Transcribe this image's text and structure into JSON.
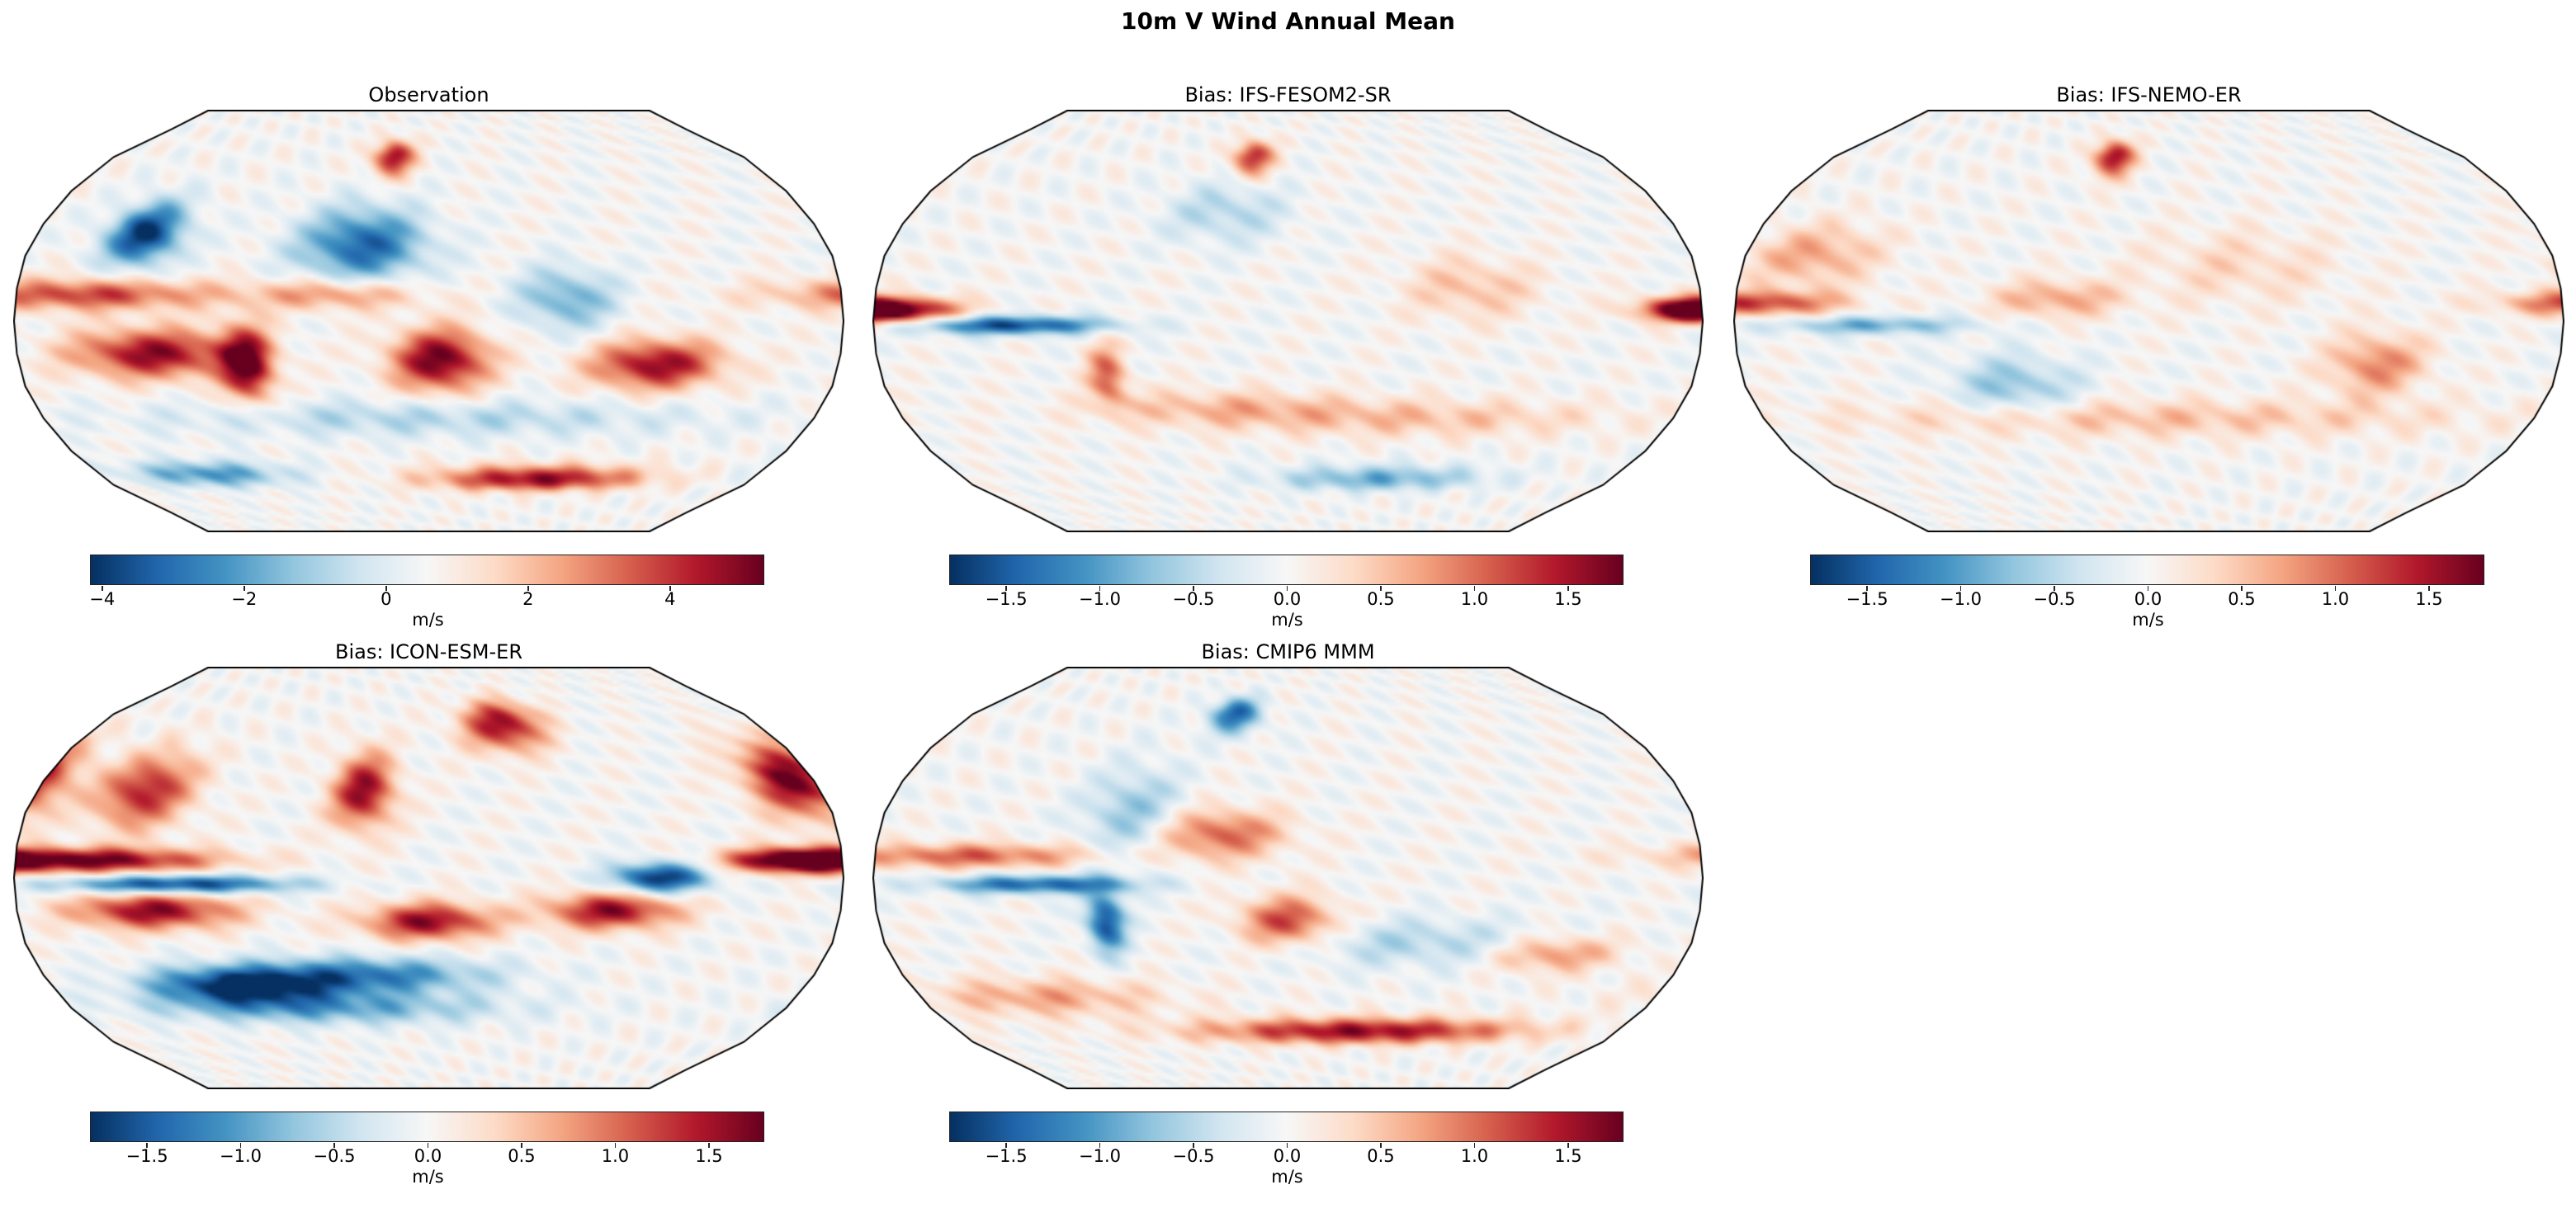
{
  "title": "10m V Wind Annual Mean",
  "colormap": "RdBu_r",
  "chart_data": {
    "type": "heatmap",
    "title": "10m V Wind Annual Mean",
    "projection": "Robinson",
    "panels": [
      {
        "title": "Observation",
        "colorbar": {
          "label": "m/s",
          "range": [
            -4.16,
            5.34
          ],
          "ticks": [
            -4,
            -2,
            0,
            2,
            4
          ],
          "tick_labels": [
            "−4",
            "−2",
            "0",
            "2",
            "4"
          ]
        }
      },
      {
        "title": "Bias: IFS-FESOM2-SR",
        "colorbar": {
          "label": "m/s",
          "range": [
            -1.8,
            1.8
          ],
          "ticks": [
            -1.5,
            -1.0,
            -0.5,
            0.0,
            0.5,
            1.0,
            1.5
          ],
          "tick_labels": [
            "−1.5",
            "−1.0",
            "−0.5",
            "0.0",
            "0.5",
            "1.0",
            "1.5"
          ]
        }
      },
      {
        "title": "Bias: IFS-NEMO-ER",
        "colorbar": {
          "label": "m/s",
          "range": [
            -1.8,
            1.8
          ],
          "ticks": [
            -1.5,
            -1.0,
            -0.5,
            0.0,
            0.5,
            1.0,
            1.5
          ],
          "tick_labels": [
            "−1.5",
            "−1.0",
            "−0.5",
            "0.0",
            "0.5",
            "1.0",
            "1.5"
          ]
        }
      },
      {
        "title": "Bias: ICON-ESM-ER",
        "colorbar": {
          "label": "m/s",
          "range": [
            -1.8,
            1.8
          ],
          "ticks": [
            -1.5,
            -1.0,
            -0.5,
            0.0,
            0.5,
            1.0,
            1.5
          ],
          "tick_labels": [
            "−1.5",
            "−1.0",
            "−0.5",
            "0.0",
            "0.5",
            "1.0",
            "1.5"
          ]
        }
      },
      {
        "title": "Bias: CMIP6 MMM",
        "colorbar": {
          "label": "m/s",
          "range": [
            -1.8,
            1.8
          ],
          "ticks": [
            -1.5,
            -1.0,
            -0.5,
            0.0,
            0.5,
            1.0,
            1.5
          ],
          "tick_labels": [
            "−1.5",
            "−1.0",
            "−0.5",
            "0.0",
            "0.5",
            "1.0",
            "1.5"
          ]
        }
      }
    ]
  }
}
